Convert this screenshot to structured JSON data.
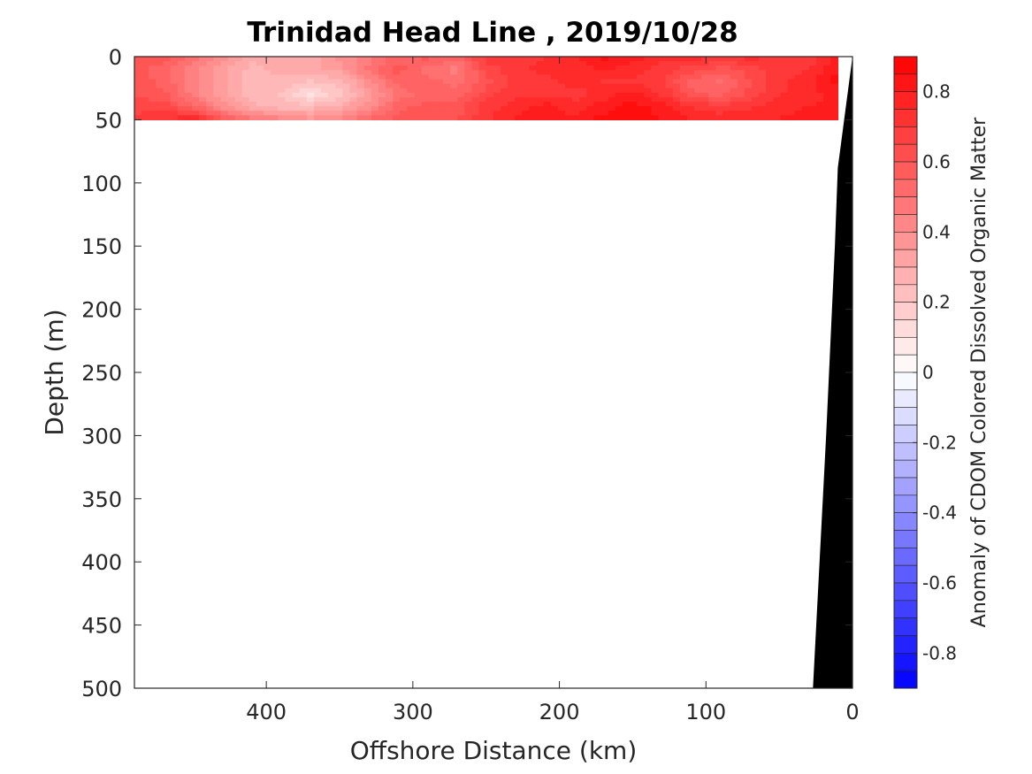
{
  "chart_data": {
    "type": "heatmap",
    "title": "Trinidad Head Line , 2019/10/28",
    "xlabel": "Offshore Distance (km)",
    "ylabel": "Depth (m)",
    "xlim": [
      490,
      0
    ],
    "ylim": [
      0,
      500
    ],
    "x_ticks": [
      400,
      300,
      200,
      100,
      0
    ],
    "y_ticks": [
      0,
      50,
      100,
      150,
      200,
      250,
      300,
      350,
      400,
      450,
      500
    ],
    "depth": [
      0,
      10,
      20,
      30,
      40,
      50
    ],
    "distance": [
      490,
      470,
      450,
      430,
      410,
      390,
      370,
      350,
      330,
      310,
      290,
      270,
      250,
      230,
      210,
      190,
      170,
      150,
      130,
      110,
      90,
      70,
      50,
      30,
      10
    ],
    "values": [
      [
        0.62,
        0.6,
        0.5,
        0.4,
        0.3,
        0.3,
        0.3,
        0.4,
        0.45,
        0.55,
        0.6,
        0.55,
        0.7,
        0.7,
        0.72,
        0.78,
        0.85,
        0.8,
        0.75,
        0.78,
        0.7,
        0.75,
        0.7,
        0.7,
        0.78
      ],
      [
        0.6,
        0.55,
        0.45,
        0.35,
        0.25,
        0.3,
        0.3,
        0.35,
        0.5,
        0.6,
        0.5,
        0.45,
        0.65,
        0.7,
        0.75,
        0.72,
        0.78,
        0.75,
        0.7,
        0.65,
        0.6,
        0.65,
        0.7,
        0.72,
        0.82
      ],
      [
        0.62,
        0.55,
        0.45,
        0.35,
        0.25,
        0.25,
        0.22,
        0.25,
        0.4,
        0.55,
        0.55,
        0.5,
        0.6,
        0.7,
        0.7,
        0.75,
        0.72,
        0.72,
        0.68,
        0.55,
        0.52,
        0.62,
        0.72,
        0.75,
        0.85
      ],
      [
        0.62,
        0.6,
        0.45,
        0.35,
        0.25,
        0.22,
        0.12,
        0.2,
        0.35,
        0.5,
        0.55,
        0.55,
        0.65,
        0.72,
        0.72,
        0.7,
        0.75,
        0.8,
        0.72,
        0.6,
        0.55,
        0.65,
        0.72,
        0.75,
        0.8
      ],
      [
        0.65,
        0.65,
        0.55,
        0.4,
        0.3,
        0.25,
        0.25,
        0.3,
        0.4,
        0.55,
        0.6,
        0.6,
        0.7,
        0.75,
        0.8,
        0.75,
        0.8,
        0.85,
        0.8,
        0.72,
        0.7,
        0.72,
        0.75,
        0.78,
        0.78
      ],
      [
        0.7,
        0.72,
        0.8,
        0.62,
        0.5,
        0.45,
        0.4,
        0.45,
        0.55,
        0.6,
        0.62,
        0.62,
        0.72,
        0.78,
        0.82,
        0.78,
        0.85,
        0.88,
        0.82,
        0.78,
        0.75,
        0.75,
        0.78,
        0.8,
        0.8
      ]
    ],
    "data_extent": {
      "depth_max": 50,
      "distance_max": 490,
      "distance_min": 10
    },
    "bathymetry": {
      "distance": [
        0,
        10,
        12,
        18,
        27,
        27
      ],
      "depth": [
        0,
        88,
        150,
        300,
        500,
        500
      ]
    },
    "colorbar": {
      "label": "Anomaly of CDOM Colored Dissolved Organic Matter",
      "lim": [
        -0.9,
        0.9
      ],
      "step": 0.05,
      "ticks": [
        0.8,
        0.6,
        0.4,
        0.2,
        0,
        -0.2,
        -0.4,
        -0.6,
        -0.8
      ],
      "colormap": "blue-white-red",
      "neg_color": "#0000ff",
      "mid_color": "#ffffff",
      "pos_color": "#ff0000"
    },
    "land_color": "#000000",
    "grid": false
  }
}
